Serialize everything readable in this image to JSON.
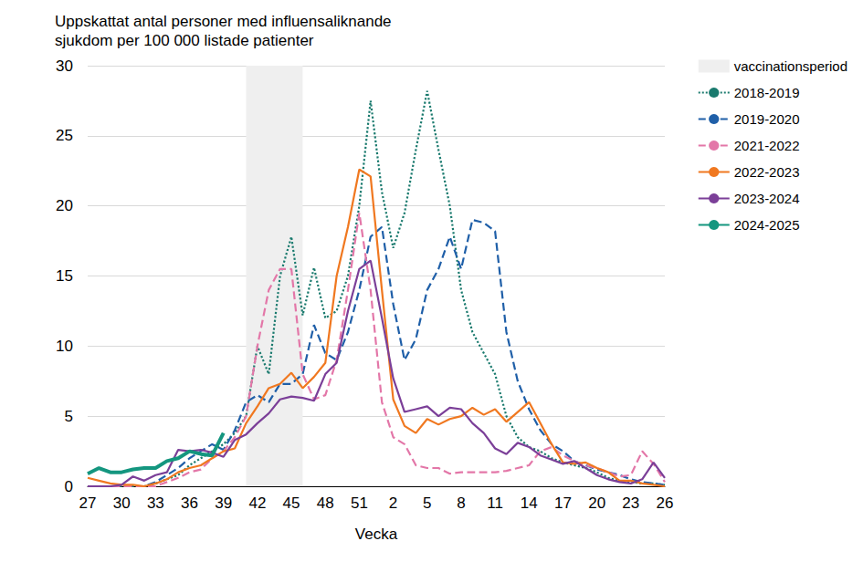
{
  "chart_data": {
    "type": "line",
    "title": "Uppskattat antal personer med influensaliknande\nsjukdom per 100 000 listade patienter",
    "x_label": "Vecka",
    "categories": [
      "27",
      null,
      null,
      "30",
      null,
      null,
      "33",
      null,
      null,
      "36",
      null,
      null,
      "39",
      null,
      null,
      "42",
      null,
      null,
      "45",
      null,
      null,
      "48",
      null,
      null,
      "51",
      null,
      null,
      "2",
      null,
      null,
      "5",
      null,
      null,
      "8",
      null,
      null,
      "11",
      null,
      null,
      "14",
      null,
      null,
      "17",
      null,
      null,
      "20",
      null,
      null,
      "23",
      null,
      null,
      "26"
    ],
    "ylim": [
      0,
      30
    ],
    "yticks": [
      0,
      5,
      10,
      15,
      20,
      25,
      30
    ],
    "grid": true,
    "legend": "right",
    "bands": [
      {
        "name": "vaccinationsperiod",
        "color": "#efefef",
        "start_index": 14,
        "end_index": 19
      }
    ],
    "series": [
      {
        "name": "2018-2019",
        "color": "#1a7a6e",
        "line_style": "dotted",
        "values": [
          0,
          0,
          0,
          0,
          0,
          0,
          0.2,
          0.5,
          0.8,
          1.5,
          2.0,
          2.5,
          3.0,
          3.8,
          5.0,
          10.0,
          8.0,
          15.0,
          17.8,
          12.2,
          15.6,
          12.0,
          12.5,
          15.0,
          20.0,
          27.5,
          21.0,
          17.0,
          19.5,
          24.0,
          28.2,
          24.0,
          20.0,
          14.0,
          11.0,
          9.5,
          8.0,
          5.0,
          3.5,
          2.8,
          2.5,
          2.0,
          1.7,
          1.5,
          1.3,
          1.0,
          0.6,
          0.4,
          0.3,
          0.2,
          0.2,
          0.1
        ]
      },
      {
        "name": "2019-2020",
        "color": "#1f5fa8",
        "line_style": "dashed",
        "values": [
          0,
          0,
          0,
          0,
          0,
          0,
          0.3,
          0.8,
          1.3,
          2.0,
          2.5,
          3.0,
          2.6,
          4.0,
          6.0,
          6.5,
          6.0,
          7.3,
          7.3,
          8.0,
          11.5,
          9.5,
          9.0,
          11.0,
          14.0,
          17.8,
          18.5,
          13.0,
          9.0,
          10.5,
          14.0,
          15.5,
          17.8,
          15.5,
          19.0,
          18.8,
          18.2,
          11.0,
          7.5,
          5.5,
          4.0,
          3.0,
          2.5,
          1.8,
          1.5,
          1.2,
          1.0,
          0.8,
          0.5,
          0.3,
          0.2,
          0.1
        ]
      },
      {
        "name": "2021-2022",
        "color": "#e377a8",
        "line_style": "dashed",
        "values": [
          0,
          0,
          0,
          0,
          0,
          0,
          0,
          0.3,
          0.6,
          1.0,
          1.2,
          2.0,
          2.5,
          3.5,
          5.0,
          10.0,
          14.0,
          15.5,
          15.5,
          8.0,
          6.2,
          6.5,
          9.0,
          14.0,
          19.5,
          14.0,
          6.0,
          3.5,
          3.0,
          1.5,
          1.3,
          1.3,
          0.9,
          1.0,
          1.0,
          1.0,
          1.0,
          1.1,
          1.3,
          1.5,
          2.5,
          2.8,
          2.2,
          1.8,
          1.5,
          1.3,
          1.0,
          0.7,
          0.8,
          2.5,
          1.6,
          0.3
        ]
      },
      {
        "name": "2022-2023",
        "color": "#f07820",
        "line_style": "solid",
        "values": [
          0.6,
          0.4,
          0.2,
          0.1,
          0.1,
          0,
          0.2,
          0.5,
          1.0,
          1.3,
          1.5,
          2.0,
          2.5,
          2.7,
          4.5,
          5.7,
          7.0,
          7.3,
          8.1,
          7.0,
          7.8,
          8.8,
          15.0,
          18.5,
          22.6,
          22.1,
          14.0,
          6.2,
          4.3,
          3.8,
          4.8,
          4.4,
          4.8,
          5.0,
          5.6,
          5.1,
          5.5,
          4.6,
          5.3,
          6.0,
          4.5,
          3.0,
          1.7,
          1.6,
          1.7,
          1.3,
          1.0,
          0.4,
          0.4,
          0.2,
          0.1,
          0
        ]
      },
      {
        "name": "2023-2024",
        "color": "#7b3f98",
        "line_style": "solid",
        "values": [
          0,
          0,
          0,
          0.1,
          0.7,
          0.4,
          0.8,
          1.0,
          2.6,
          2.5,
          2.6,
          2.4,
          2.1,
          3.3,
          3.7,
          4.5,
          5.2,
          6.2,
          6.4,
          6.3,
          6.1,
          8.0,
          8.8,
          12.5,
          15.5,
          16.1,
          12.0,
          7.7,
          5.3,
          5.5,
          5.7,
          5.0,
          5.6,
          5.5,
          4.5,
          3.8,
          2.7,
          2.3,
          3.1,
          2.8,
          2.2,
          1.9,
          1.6,
          1.8,
          1.3,
          0.8,
          0.5,
          0.3,
          0.2,
          0.5,
          1.7,
          0.6
        ]
      },
      {
        "name": "2024-2025",
        "color": "#14967f",
        "line_style": "solid",
        "values": [
          0.9,
          1.3,
          1.0,
          1.0,
          1.2,
          1.3,
          1.3,
          1.8,
          2.0,
          2.5,
          2.3,
          2.2,
          3.8,
          null,
          null,
          null,
          null,
          null,
          null,
          null,
          null,
          null,
          null,
          null,
          null,
          null,
          null,
          null,
          null,
          null,
          null,
          null,
          null,
          null,
          null,
          null,
          null,
          null,
          null,
          null,
          null,
          null,
          null,
          null,
          null,
          null,
          null,
          null,
          null,
          null,
          null,
          null
        ]
      }
    ]
  }
}
